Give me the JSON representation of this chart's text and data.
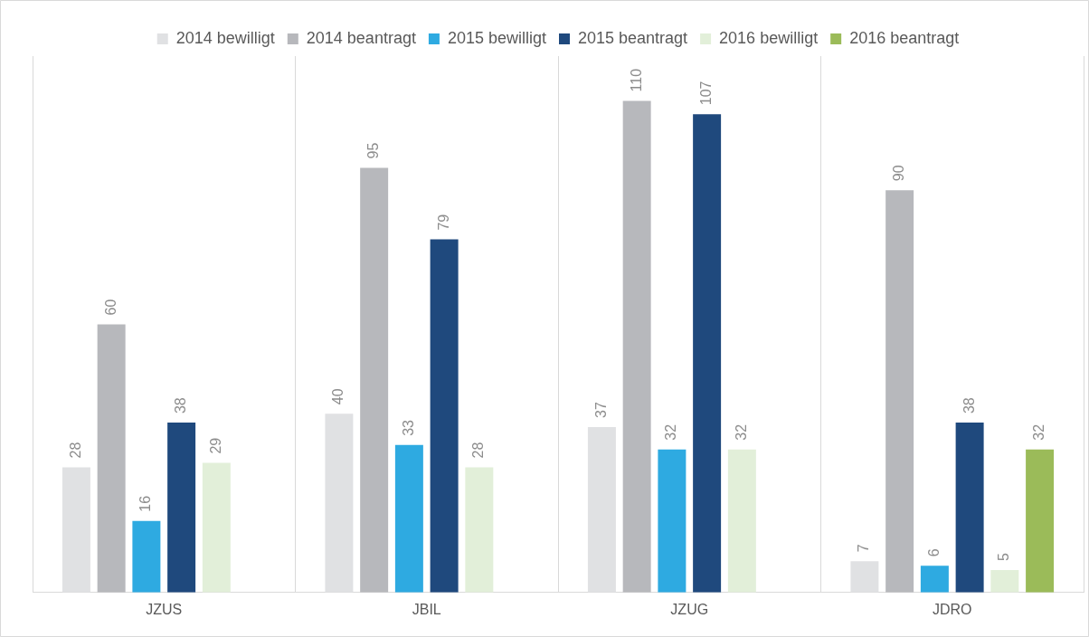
{
  "chart_data": {
    "type": "bar",
    "categories": [
      "JZUS",
      "JBIL",
      "JZUG",
      "JDRO"
    ],
    "series": [
      {
        "name": "2014 bewilligt",
        "color": "#e0e1e3",
        "values": [
          28,
          40,
          37,
          7
        ]
      },
      {
        "name": "2014 beantragt",
        "color": "#b7b8bc",
        "values": [
          60,
          95,
          110,
          90
        ]
      },
      {
        "name": "2015 bewilligt",
        "color": "#2eaae1",
        "values": [
          16,
          33,
          32,
          6
        ]
      },
      {
        "name": "2015 beantragt",
        "color": "#1f497d",
        "values": [
          38,
          79,
          107,
          38
        ]
      },
      {
        "name": "2016 bewilligt",
        "color": "#e2efd9",
        "values": [
          29,
          28,
          32,
          5
        ]
      },
      {
        "name": "2016 beantragt",
        "color": "#9bbb59",
        "values": [
          null,
          null,
          null,
          32
        ]
      }
    ],
    "data_labels": true,
    "grid": "x",
    "legend": "top",
    "tick_labels": "x"
  }
}
